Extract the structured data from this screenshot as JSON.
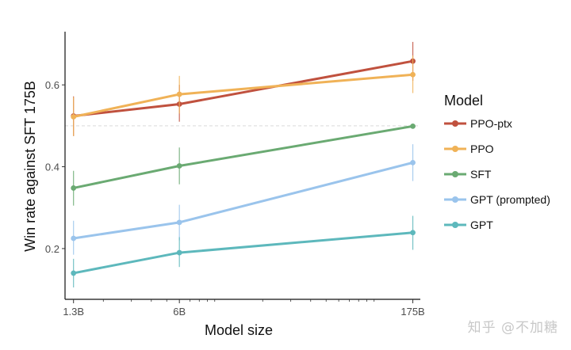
{
  "chart_data": {
    "type": "line",
    "title": "",
    "xlabel": "Model size",
    "ylabel": "Win rate against SFT 175B",
    "x_scale": "log",
    "categories": [
      "1.3B",
      "6B",
      "175B"
    ],
    "x": [
      1.3,
      6,
      175
    ],
    "xlim": [
      1.15,
      195
    ],
    "ylim": [
      0.076,
      0.73
    ],
    "yticks": [
      0.2,
      0.4,
      0.6
    ],
    "ytick_labels": [
      "0.2",
      "0.4",
      "0.6"
    ],
    "reference_line": 0.5,
    "grid": false,
    "legend_title": "Model",
    "legend_position": "right",
    "series": [
      {
        "name": "PPO-ptx",
        "color": "#c0513e",
        "values": [
          0.524,
          0.553,
          0.658
        ],
        "err_low": [
          0.475,
          0.51,
          0.61
        ],
        "err_high": [
          0.572,
          0.6,
          0.705
        ]
      },
      {
        "name": "PPO",
        "color": "#f0b257",
        "values": [
          0.522,
          0.577,
          0.625
        ],
        "err_low": [
          0.475,
          0.53,
          0.58
        ],
        "err_high": [
          0.57,
          0.622,
          0.672
        ]
      },
      {
        "name": "SFT",
        "color": "#6aaa72",
        "values": [
          0.348,
          0.402,
          0.499
        ],
        "err_low": [
          0.305,
          0.357,
          0.499
        ],
        "err_high": [
          0.39,
          0.447,
          0.499
        ]
      },
      {
        "name": "GPT (prompted)",
        "color": "#9ac4ec",
        "values": [
          0.225,
          0.264,
          0.41
        ],
        "err_low": [
          0.185,
          0.22,
          0.365
        ],
        "err_high": [
          0.268,
          0.307,
          0.455
        ]
      },
      {
        "name": "GPT",
        "color": "#5db8bc",
        "values": [
          0.14,
          0.19,
          0.239
        ],
        "err_low": [
          0.105,
          0.155,
          0.197
        ],
        "err_high": [
          0.175,
          0.228,
          0.28
        ]
      }
    ]
  },
  "watermark": "知乎 @不加糖"
}
